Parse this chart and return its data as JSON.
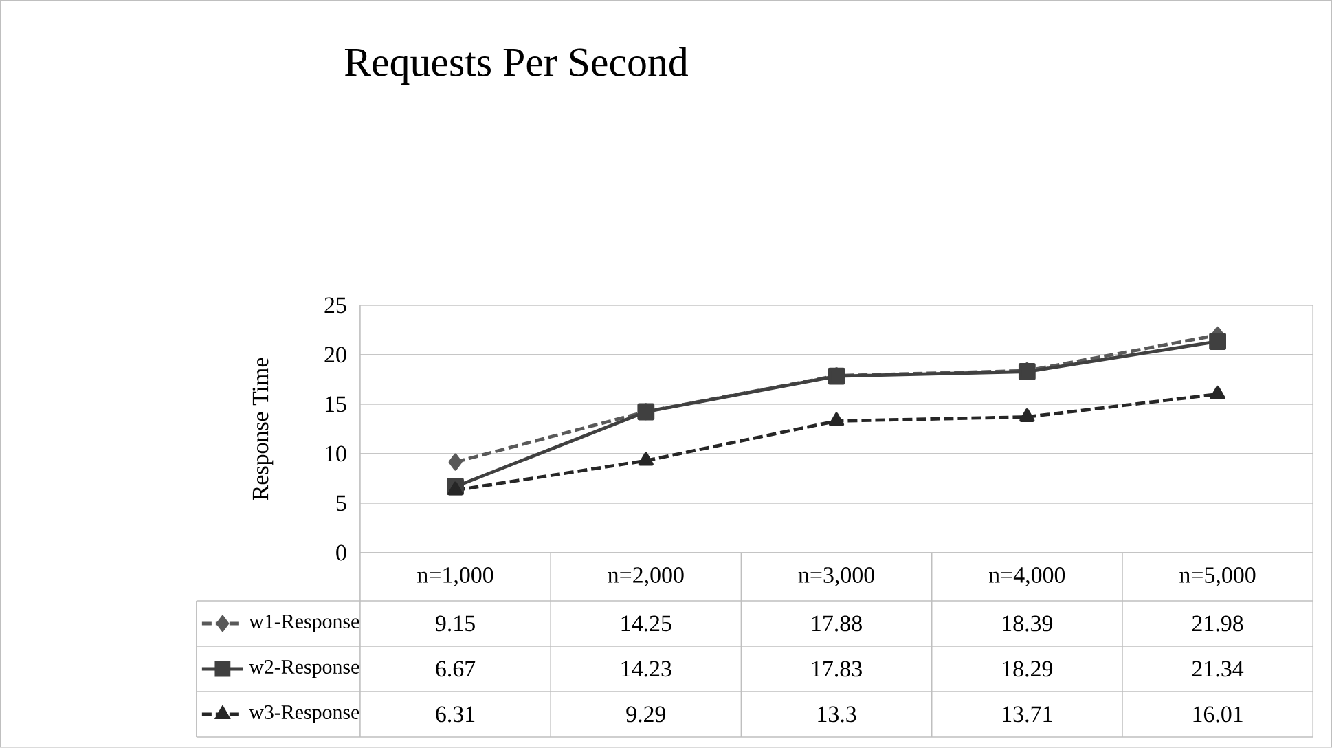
{
  "chart_data": {
    "type": "line",
    "title": "Requests Per Second",
    "ylabel": "Response Time",
    "categories": [
      "n=1,000",
      "n=2,000",
      "n=3,000",
      "n=4,000",
      "n=5,000"
    ],
    "series": [
      {
        "name": "w1-Response",
        "color": "#595959",
        "marker": "diamond",
        "line_style": "dashed",
        "values": [
          9.15,
          14.25,
          17.88,
          18.39,
          21.98
        ]
      },
      {
        "name": "w2-Response",
        "color": "#404040",
        "marker": "square",
        "line_style": "solid",
        "values": [
          6.67,
          14.23,
          17.83,
          18.29,
          21.34
        ]
      },
      {
        "name": "w3-Response",
        "color": "#262626",
        "marker": "triangle",
        "line_style": "dashed",
        "values": [
          6.31,
          9.29,
          13.3,
          13.71,
          16.01
        ]
      }
    ],
    "ylim": [
      0,
      25
    ],
    "yticks": [
      0,
      5,
      10,
      15,
      20,
      25
    ],
    "grid": "y",
    "legend": "bottom",
    "data_labels": true
  }
}
